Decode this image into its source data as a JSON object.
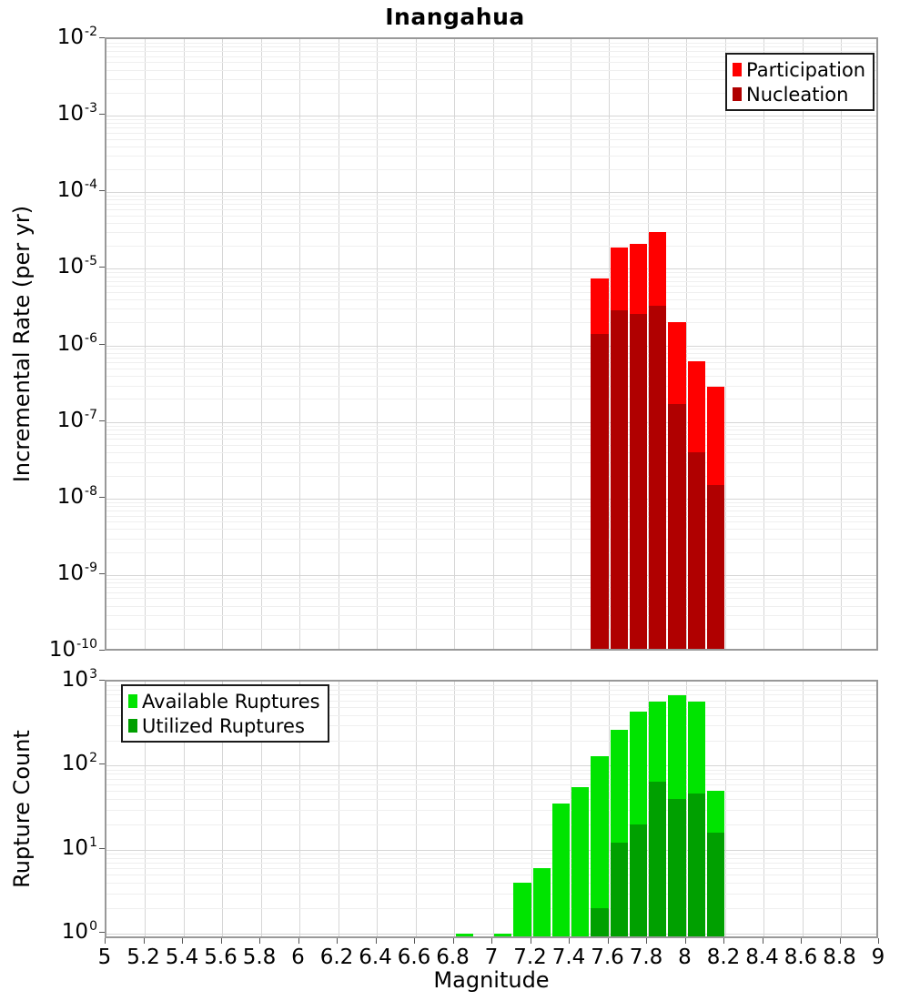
{
  "title": "Inangahua",
  "x_axis": {
    "label": "Magnitude",
    "min": 5,
    "max": 9,
    "tick_step": 0.2,
    "tick_labels": [
      "5",
      "5.2",
      "5.4",
      "5.6",
      "5.8",
      "6",
      "6.2",
      "6.4",
      "6.6",
      "6.8",
      "7",
      "7.2",
      "7.4",
      "7.6",
      "7.8",
      "8",
      "8.2",
      "8.4",
      "8.6",
      "8.8",
      "9"
    ]
  },
  "colors": {
    "participation": "#ff0000",
    "nucleation": "#b00000",
    "available": "#00e400",
    "utilized": "#00a000",
    "grid_major": "#d6d6d6",
    "grid_minor": "#efefef",
    "plot_border": "#999999"
  },
  "chart_data": [
    {
      "type": "bar",
      "title": "Inangahua",
      "xlabel": "Magnitude",
      "ylabel": "Incremental Rate (per yr)",
      "y_scale": "log",
      "grid": true,
      "x_range": [
        5,
        9
      ],
      "y_range_exponents": [
        -10.01,
        -2
      ],
      "y_tick_exponents": [
        -2,
        -3,
        -4,
        -5,
        -6,
        -7,
        -8,
        -9,
        -10
      ],
      "bin_width": 0.1,
      "bin_centers": [
        7.55,
        7.65,
        7.75,
        7.85,
        7.95,
        8.05,
        8.15
      ],
      "series": [
        {
          "name": "Participation",
          "color_key": "participation",
          "values": [
            7.5e-06,
            1.9e-05,
            2.1e-05,
            3e-05,
            2e-06,
            6.2e-07,
            2.9e-07
          ]
        },
        {
          "name": "Nucleation",
          "color_key": "nucleation",
          "values": [
            1.4e-06,
            2.9e-06,
            2.6e-06,
            3.3e-06,
            1.7e-07,
            4e-08,
            1.5e-08
          ]
        }
      ],
      "legend_position": "top-right"
    },
    {
      "type": "bar",
      "title": "",
      "xlabel": "Magnitude",
      "ylabel": "Rupture Count",
      "y_scale": "log",
      "grid": true,
      "x_range": [
        5,
        9
      ],
      "y_range_exponents": [
        -0.077,
        3
      ],
      "y_tick_exponents": [
        3,
        2,
        1,
        0
      ],
      "bin_width": 0.1,
      "bin_centers": [
        6.85,
        7.05,
        7.15,
        7.25,
        7.35,
        7.45,
        7.55,
        7.65,
        7.75,
        7.85,
        7.95,
        8.05,
        8.15
      ],
      "series": [
        {
          "name": "Available Ruptures",
          "color_key": "available",
          "values": [
            1,
            1,
            4,
            6,
            35,
            55,
            130,
            270,
            440,
            575,
            695,
            575,
            50
          ]
        },
        {
          "name": "Utilized Ruptures",
          "color_key": "utilized",
          "values": [
            0,
            0,
            0,
            0,
            0,
            0,
            2,
            12,
            20,
            64,
            40,
            46,
            16
          ]
        }
      ],
      "legend_position": "top-left"
    }
  ]
}
